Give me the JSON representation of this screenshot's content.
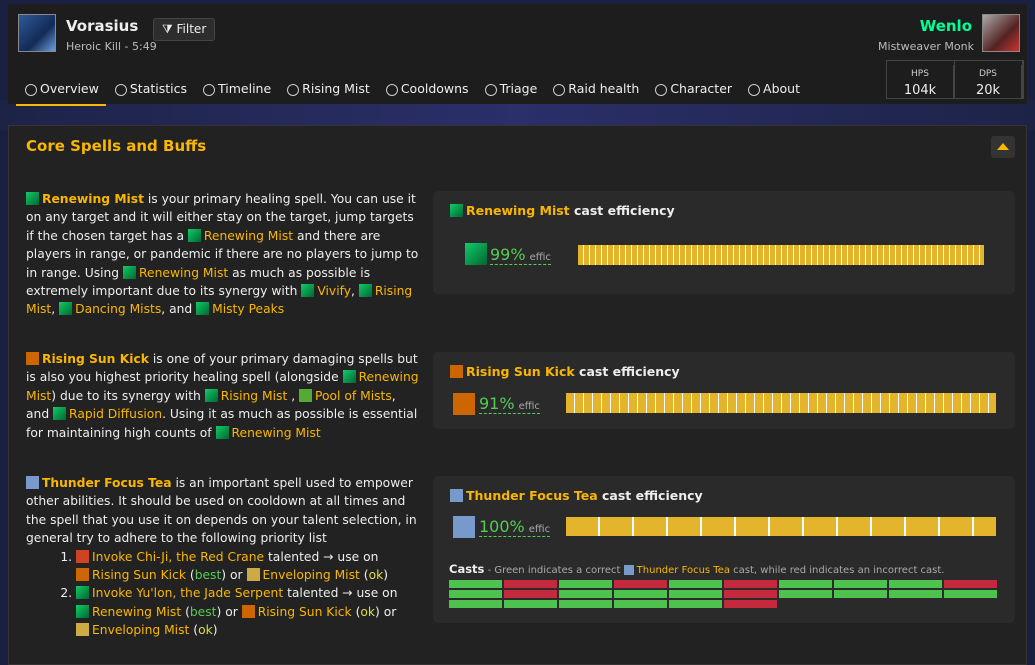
{
  "header": {
    "name": "Vorasius",
    "kill": "Heroic Kill - 5:49",
    "filter": "Filter",
    "player": "Wenlo",
    "spec": "Mistweaver Monk",
    "stats": [
      {
        "label": "HPS",
        "value": "104k"
      },
      {
        "label": "DPS",
        "value": "20k"
      }
    ]
  },
  "tabs": [
    "Overview",
    "Statistics",
    "Timeline",
    "Rising Mist",
    "Cooldowns",
    "Triage",
    "Raid health",
    "Character",
    "About"
  ],
  "section": {
    "title": "Core Spells and Buffs"
  },
  "panels": [
    {
      "text": [
        "Renewing Mist",
        " is your primary healing spell. You can use it on any target and it will either stay on the target, jump targets if the chosen target has a ",
        "Renewing Mist",
        " and there are players in range, or pandemic if there are no players to jump to in range. Using ",
        "Renewing Mist",
        " as much as possible is extremely important due to its synergy with ",
        "Vivify",
        ", ",
        "Rising Mist",
        ", ",
        "Dancing Mists",
        ", and ",
        "Misty Peaks"
      ],
      "card": {
        "spell": "Renewing Mist",
        "suffix": " cast efficiency",
        "percent": "99%",
        "unit": "effic"
      }
    },
    {
      "text": [
        "Rising Sun Kick",
        " is one of your primary damaging spells but is also you highest priority healing spell (alongside ",
        "Renewing Mist",
        ") due to its synergy with ",
        "Rising Mist",
        " , ",
        "Pool of Mists",
        ", and ",
        "Rapid Diffusion",
        ". Using it as much as possible is essential for maintaining high counts of ",
        "Renewing Mist"
      ],
      "card": {
        "spell": "Rising Sun Kick",
        "suffix": " cast efficiency",
        "percent": "91%",
        "unit": "effic"
      }
    },
    {
      "text": [
        "Thunder Focus Tea",
        " is an important spell used to empower other abilities. It should be used on cooldown at all times and the spell that you use it on depends on your talent selection, in general try to adhere to the following priority list"
      ],
      "list": [
        [
          "Invoke Chi-Ji, the Red Crane",
          " talented → use on ",
          "Rising Sun Kick",
          " (",
          "best",
          ") or ",
          "Enveloping Mist",
          " (",
          "ok",
          ")"
        ],
        [
          "Invoke Yu'lon, the Jade Serpent",
          " talented → use on ",
          "Renewing Mist",
          " (",
          "best",
          ") or ",
          "Rising Sun Kick",
          " (",
          "ok",
          ") or ",
          "Enveloping Mist",
          " (",
          "ok",
          ")"
        ]
      ],
      "card": {
        "spell": "Thunder Focus Tea",
        "suffix": " cast efficiency",
        "percent": "100%",
        "unit": "effic"
      },
      "casts": [
        "Casts",
        " - Green indicates a correct ",
        "Thunder Focus Tea",
        " cast, while red indicates an incorrect cast."
      ]
    }
  ]
}
